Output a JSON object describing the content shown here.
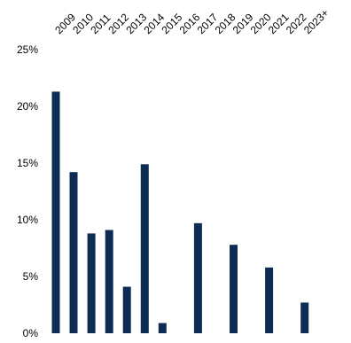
{
  "chart_data": {
    "type": "bar",
    "categories": [
      "2009",
      "2010",
      "2011",
      "2012",
      "2013",
      "2014",
      "2015",
      "2016",
      "2017",
      "2018",
      "2019",
      "2020",
      "2021",
      "2022",
      "2023+"
    ],
    "values": [
      21.3,
      14.2,
      8.8,
      9.1,
      4.1,
      14.9,
      0.9,
      null,
      9.7,
      null,
      7.8,
      null,
      5.8,
      null,
      2.7
    ],
    "bar_color": "#0d2c54",
    "ylim": [
      0,
      25
    ],
    "yticks": [
      0,
      5,
      10,
      15,
      20,
      25
    ],
    "ytick_labels": [
      "0%",
      "5%",
      "10%",
      "15%",
      "20%",
      "25%"
    ],
    "legend": "none",
    "grid": false
  }
}
